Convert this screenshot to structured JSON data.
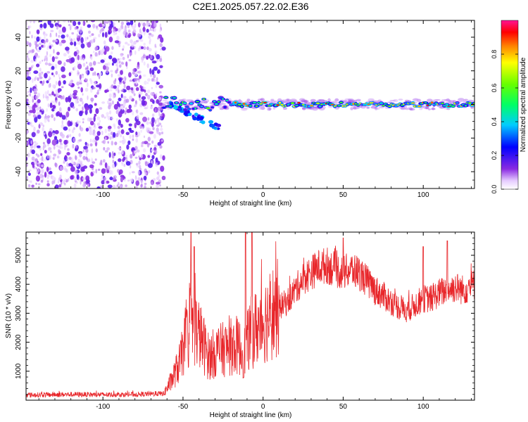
{
  "title": "C2E1.2025.057.22.02.E36",
  "chart_data": [
    {
      "type": "heatmap",
      "xlabel": "Height of straight line (km)",
      "ylabel": "Frequency (Hz)",
      "xlim": [
        -148,
        132
      ],
      "ylim": [
        -50,
        50
      ],
      "xticks": [
        -100,
        -50,
        0,
        50,
        100
      ],
      "yticks": [
        -40,
        -20,
        0,
        20,
        40
      ],
      "colorbar": {
        "label": "Normalized spectral amplitude",
        "range": [
          0,
          1
        ],
        "ticks": [
          0.0,
          0.2,
          0.4,
          0.6,
          0.8
        ],
        "tick_labels": [
          "0.0",
          "0.2",
          "0.4",
          "0.6",
          "0.8"
        ],
        "colormap": "rainbow (white-violet-blue-cyan-green-yellow-red-magenta)"
      },
      "features": {
        "noise_region_x": [
          -148,
          -62
        ],
        "signal_start_x": -62,
        "main_line_frequency": 0,
        "split_branch_x": [
          -58,
          -27
        ],
        "split_branch_freq": [
          0,
          -14
        ]
      }
    },
    {
      "type": "line",
      "xlabel": "Height of straight line (km)",
      "ylabel": "SNR (10 * v/v)",
      "xlim": [
        -148,
        132
      ],
      "ylim": [
        0,
        5800
      ],
      "xticks": [
        -100,
        -50,
        0,
        50,
        100
      ],
      "yticks": [
        1000,
        2000,
        3000,
        4000,
        5000
      ],
      "series": [
        {
          "color": "#e8262a",
          "envelope": {
            "x": [
              -148,
              -120,
              -100,
              -80,
              -62,
              -57,
              -52,
              -48,
              -44,
              -40,
              -34,
              -28,
              -22,
              -16,
              -12,
              -8,
              -4,
              0,
              5,
              10,
              15,
              20,
              25,
              30,
              35,
              40,
              45,
              50,
              55,
              60,
              65,
              70,
              75,
              80,
              85,
              90,
              95,
              100,
              105,
              110,
              115,
              120,
              125,
              132
            ],
            "y": [
              180,
              200,
              190,
              200,
              230,
              700,
              1300,
              2100,
              2600,
              2300,
              1500,
              1700,
              1800,
              1900,
              1600,
              2300,
              2500,
              2700,
              3000,
              3200,
              3400,
              3800,
              4200,
              4400,
              4600,
              4650,
              4500,
              4400,
              4500,
              4400,
              4100,
              3800,
              3600,
              3400,
              3200,
              3100,
              3300,
              3500,
              3500,
              3700,
              3800,
              3900,
              3800,
              4000
            ]
          },
          "spikes": [
            {
              "x": -45,
              "y": 5800
            },
            {
              "x": -43,
              "y": 5300
            },
            {
              "x": -11,
              "y": 5800
            },
            {
              "x": -7,
              "y": 5800
            },
            {
              "x": 50,
              "y": 5600
            },
            {
              "x": 100,
              "y": 5300
            },
            {
              "x": 115,
              "y": 5500
            }
          ]
        }
      ]
    }
  ]
}
